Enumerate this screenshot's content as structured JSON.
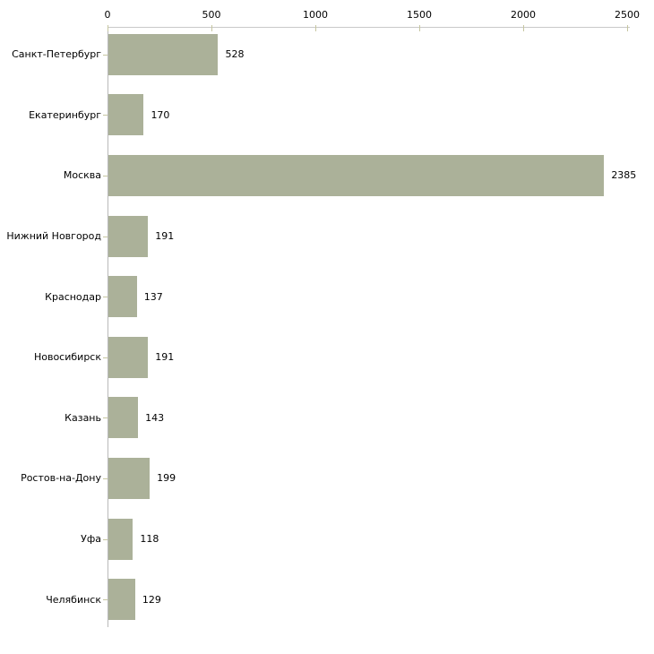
{
  "chart_data": {
    "type": "bar",
    "orientation": "horizontal",
    "title": "",
    "categories": [
      "Санкт-Петербург",
      "Екатеринбург",
      "Москва",
      "Нижний Новгород",
      "Краснодар",
      "Новосибирск",
      "Казань",
      "Ростов-на-Дону",
      "Уфа",
      "Челябинск"
    ],
    "values": [
      528,
      170,
      2385,
      191,
      137,
      191,
      143,
      199,
      118,
      129
    ],
    "value_labels": [
      "528",
      "170",
      "2385",
      "191",
      "137",
      "191",
      "143",
      "199",
      "118",
      "129"
    ],
    "xlim": [
      0,
      2500
    ],
    "xticks": [
      0,
      500,
      1000,
      1500,
      2000,
      2500
    ],
    "xtick_labels": [
      "0",
      "500",
      "1000",
      "1500",
      "2000",
      "2500"
    ],
    "grid": false,
    "legend": null,
    "axis_position": "top",
    "colors": {
      "background": "#ffffff",
      "bar_fill": "#abb199",
      "axis_line_x": "#c9c9c9",
      "axis_line_y": "#b9b9b9",
      "tick_mark": "#c6c6a0",
      "text": "#000000"
    }
  }
}
